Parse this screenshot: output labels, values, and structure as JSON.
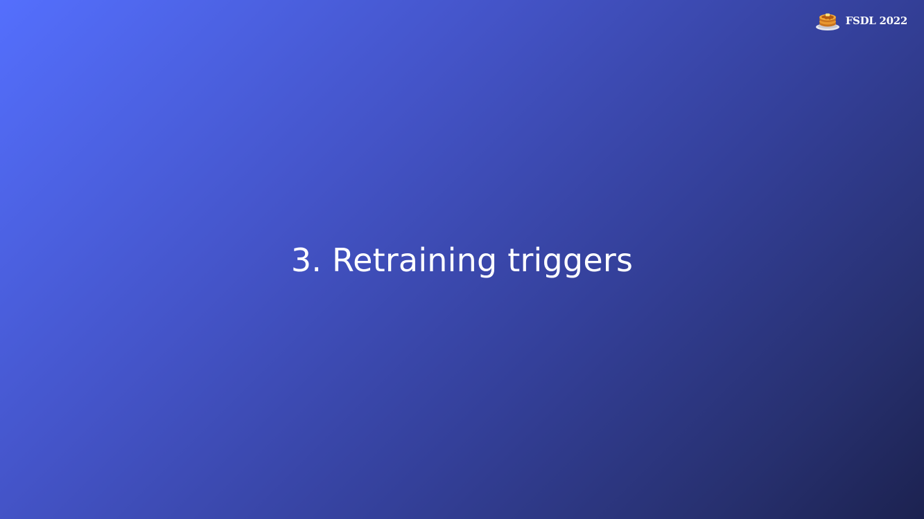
{
  "brand": {
    "logo_icon": "pancake-stack-icon",
    "label": "FSDL 2022"
  },
  "slide": {
    "title": "3. Retraining triggers"
  },
  "colors": {
    "gradient_start": "#546ffd",
    "gradient_end": "#1c2250",
    "text": "#ffffff"
  }
}
